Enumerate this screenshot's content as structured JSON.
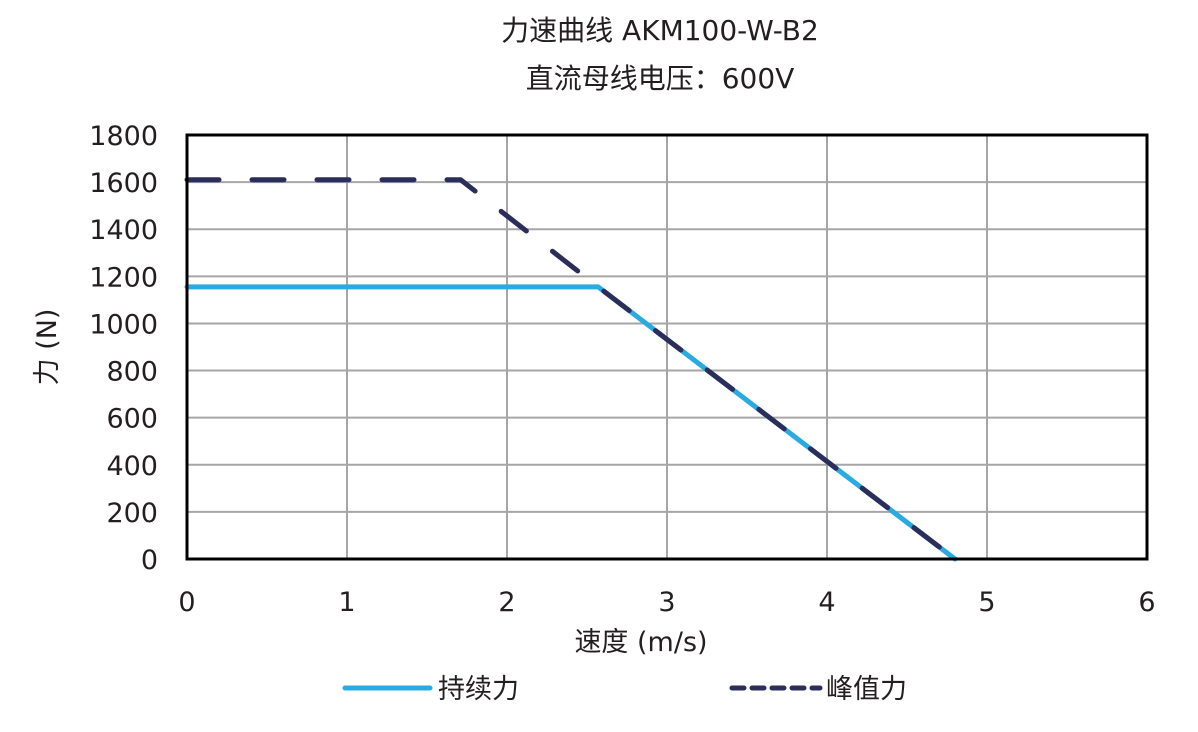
{
  "chart_data": {
    "type": "line",
    "title": "力速曲线 AKM100-W-B2",
    "subtitle": "直流母线电压：600V",
    "xlabel": "速度 (m/s)",
    "ylabel": "力 (N)",
    "xlim": [
      0,
      6
    ],
    "ylim": [
      0,
      1800
    ],
    "xticks": [
      0,
      1,
      2,
      3,
      4,
      5,
      6
    ],
    "yticks": [
      0,
      200,
      400,
      600,
      800,
      1000,
      1200,
      1400,
      1600,
      1800
    ],
    "grid": true,
    "legend_position": "bottom",
    "series": [
      {
        "name": "持续力",
        "style": "solid",
        "color": "#29abe2",
        "points": [
          [
            0,
            1155
          ],
          [
            2.57,
            1155
          ],
          [
            4.8,
            0
          ]
        ]
      },
      {
        "name": "峰值力",
        "style": "dashed",
        "color": "#2b2d5a",
        "points": [
          [
            0,
            1610
          ],
          [
            1.71,
            1610
          ],
          [
            2.57,
            1155
          ],
          [
            4.8,
            0
          ]
        ]
      }
    ]
  }
}
